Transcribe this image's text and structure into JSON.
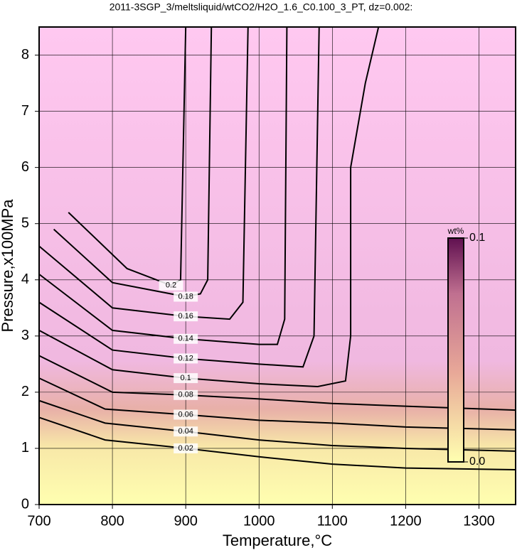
{
  "chart_data": {
    "type": "contour",
    "title": "2011-3SGP_3/meltsliquid/wtCO2/H2O_1.6_C0.100_3_PT, dz=0.002:",
    "x_label": "Temperature,°C",
    "y_label": "Pressure,x100MPa",
    "xlim": [
      700,
      1350
    ],
    "ylim": [
      0,
      8.5
    ],
    "xticks": [
      700,
      800,
      900,
      1000,
      1100,
      1200,
      1300
    ],
    "yticks": [
      0,
      1,
      2,
      3,
      4,
      5,
      6,
      7,
      8
    ],
    "grid": true,
    "contours": [
      {
        "level": 0.02,
        "x": [
          700,
          790,
          900,
          1000,
          1100,
          1200,
          1350
        ],
        "y": [
          1.55,
          1.15,
          1.0,
          0.85,
          0.72,
          0.65,
          0.62
        ]
      },
      {
        "level": 0.04,
        "x": [
          700,
          790,
          900,
          1000,
          1100,
          1200,
          1350
        ],
        "y": [
          1.85,
          1.45,
          1.3,
          1.15,
          1.05,
          1.0,
          0.95
        ]
      },
      {
        "level": 0.06,
        "x": [
          700,
          790,
          900,
          1000,
          1100,
          1200,
          1350
        ],
        "y": [
          2.25,
          1.7,
          1.6,
          1.5,
          1.45,
          1.38,
          1.33
        ]
      },
      {
        "level": 0.08,
        "x": [
          700,
          800,
          900,
          1000,
          1100,
          1200,
          1350
        ],
        "y": [
          2.65,
          2.0,
          1.95,
          1.88,
          1.8,
          1.75,
          1.68
        ]
      },
      {
        "level": 0.1,
        "x": [
          700,
          800,
          900,
          1000,
          1080,
          1118,
          1125,
          1125,
          1145,
          1163
        ],
        "y": [
          3.1,
          2.4,
          2.25,
          2.15,
          2.1,
          2.2,
          3.0,
          6.0,
          7.5,
          8.5
        ]
      },
      {
        "level": 0.12,
        "x": [
          700,
          800,
          900,
          1000,
          1060,
          1075,
          1082
        ],
        "y": [
          3.6,
          2.75,
          2.6,
          2.5,
          2.45,
          3.0,
          8.5
        ]
      },
      {
        "level": 0.14,
        "x": [
          700,
          800,
          900,
          1000,
          1025,
          1035,
          1038
        ],
        "y": [
          4.1,
          3.1,
          2.95,
          2.85,
          2.85,
          3.3,
          8.5
        ]
      },
      {
        "level": 0.16,
        "x": [
          700,
          800,
          900,
          960,
          978,
          985
        ],
        "y": [
          4.6,
          3.5,
          3.35,
          3.3,
          3.6,
          8.5
        ]
      },
      {
        "level": 0.18,
        "x": [
          720,
          800,
          900,
          920,
          930,
          935
        ],
        "y": [
          4.9,
          3.95,
          3.7,
          3.75,
          4.0,
          8.5
        ]
      },
      {
        "level": 0.2,
        "x": [
          740,
          820,
          880,
          893,
          900
        ],
        "y": [
          5.2,
          4.2,
          3.9,
          4.0,
          8.5
        ]
      }
    ],
    "colorbar": {
      "title": "wt%",
      "lim": [
        0,
        0.1
      ],
      "ticks": [
        {
          "value": 0,
          "label": "0.0"
        },
        0.1
      ]
    }
  }
}
